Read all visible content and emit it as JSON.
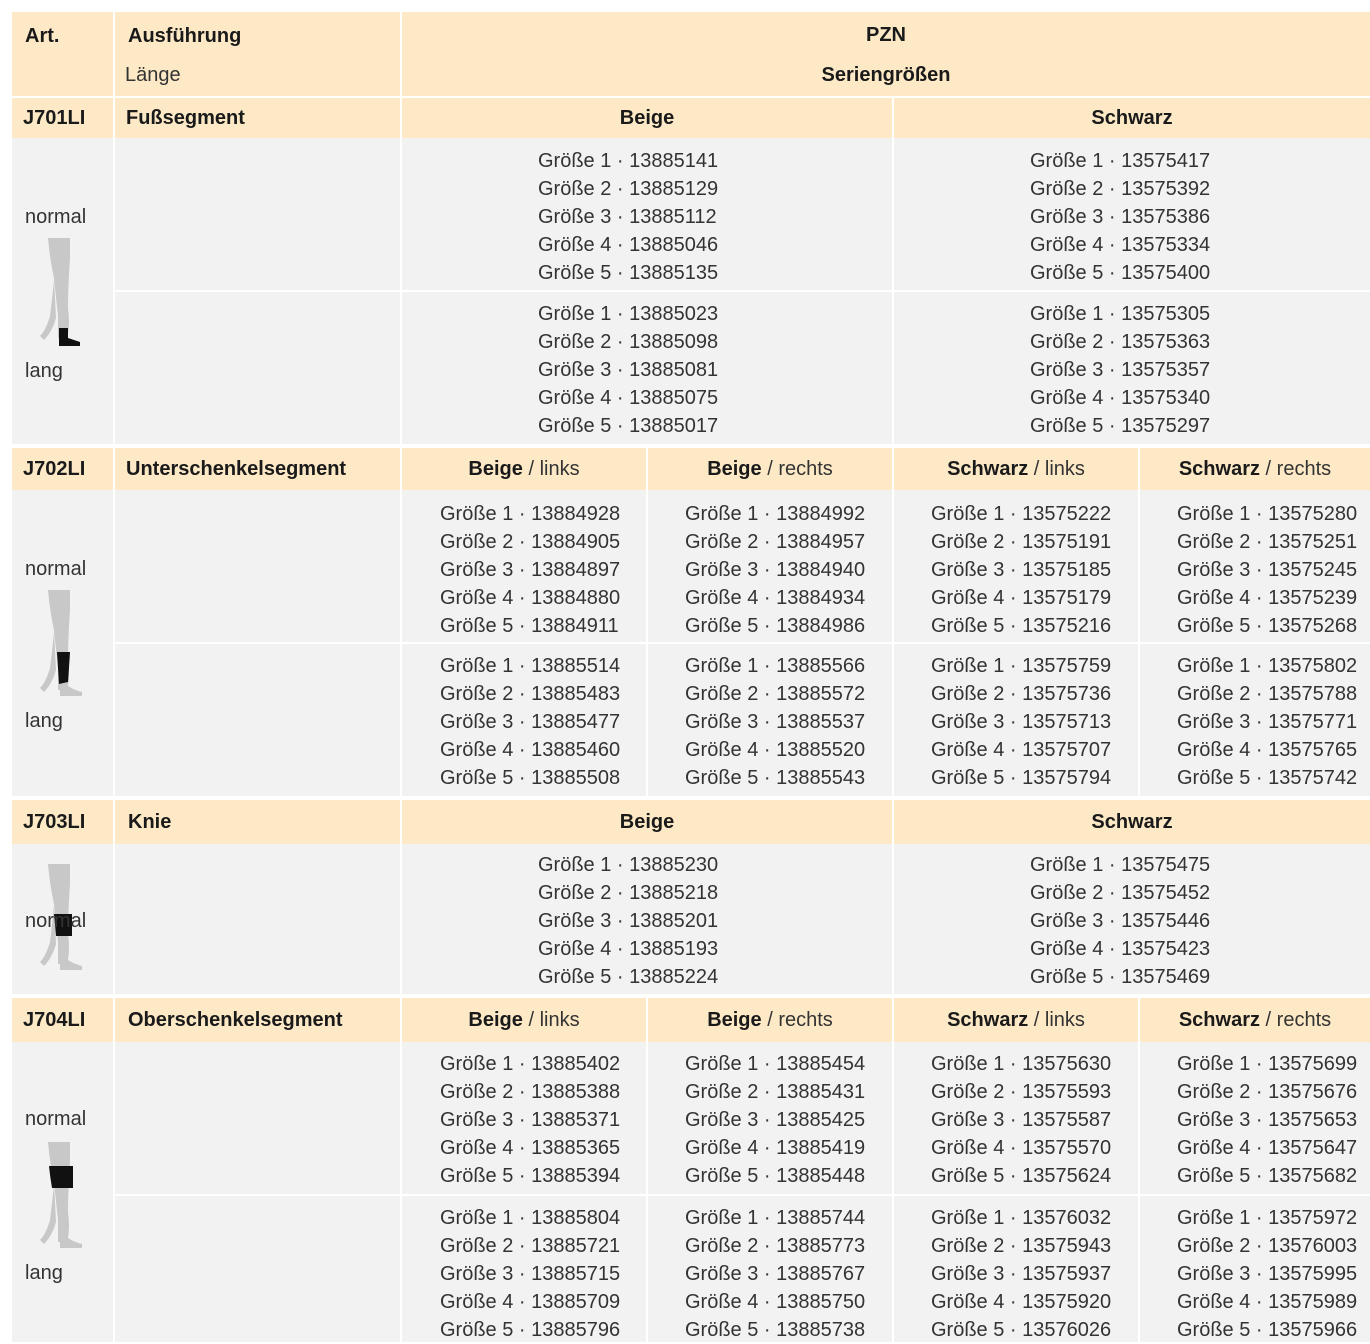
{
  "header": {
    "art": "Art.",
    "ausfuehrung": "Ausführung",
    "laenge": "Länge",
    "pzn": "PZN",
    "seriengroessen": "Seriengrößen"
  },
  "labels": {
    "beige": "Beige",
    "schwarz": "Schwarz",
    "links": "links",
    "rechts": "rechts",
    "normal": "normal",
    "lang": "lang"
  },
  "j701": {
    "art": "J701LI",
    "name": "Fußsegment",
    "normal": {
      "beige": [
        "Größe 1  · 13885141",
        "Größe 2 · 13885129",
        "Größe 3 · 13885112",
        "Größe 4 · 13885046",
        "Größe 5 · 13885135"
      ],
      "schwarz": [
        "Größe 1  · 13575417",
        "Größe 2 · 13575392",
        "Größe 3 · 13575386",
        "Größe 4 · 13575334",
        "Größe 5 · 13575400"
      ]
    },
    "lang": {
      "beige": [
        "Größe 1  · 13885023",
        "Größe 2 · 13885098",
        "Größe 3 · 13885081",
        "Größe 4 · 13885075",
        "Größe 5 · 13885017"
      ],
      "schwarz": [
        "Größe 1  · 13575305",
        "Größe 2 · 13575363",
        "Größe 3 · 13575357",
        "Größe 4 · 13575340",
        "Größe 5 · 13575297"
      ]
    }
  },
  "j702": {
    "art": "J702LI",
    "name": "Unterschenkelsegment",
    "normal": {
      "beige_links": [
        "Größe 1  · 13884928",
        "Größe 2 · 13884905",
        "Größe 3 · 13884897",
        "Größe 4 · 13884880",
        "Größe 5 · 13884911"
      ],
      "beige_rechts": [
        "Größe 1  · 13884992",
        "Größe 2 · 13884957",
        "Größe 3 · 13884940",
        "Größe 4 · 13884934",
        "Größe 5 · 13884986"
      ],
      "schwarz_links": [
        "Größe 1  · 13575222",
        "Größe 2 · 13575191",
        "Größe 3 · 13575185",
        "Größe 4 · 13575179",
        "Größe 5 · 13575216"
      ],
      "schwarz_rechts": [
        "Größe 1  · 13575280",
        "Größe 2 · 13575251",
        "Größe 3 · 13575245",
        "Größe 4 · 13575239",
        "Größe 5 · 13575268"
      ]
    },
    "lang": {
      "beige_links": [
        "Größe 1  · 13885514",
        "Größe 2 · 13885483",
        "Größe 3 · 13885477",
        "Größe 4 · 13885460",
        "Größe 5 · 13885508"
      ],
      "beige_rechts": [
        "Größe 1  · 13885566",
        "Größe 2 · 13885572",
        "Größe 3 · 13885537",
        "Größe 4 · 13885520",
        "Größe 5 · 13885543"
      ],
      "schwarz_links": [
        "Größe 1  · 13575759",
        "Größe 2 · 13575736",
        "Größe 3 · 13575713",
        "Größe 4 · 13575707",
        "Größe 5 · 13575794"
      ],
      "schwarz_rechts": [
        "Größe 1  · 13575802",
        "Größe 2 · 13575788",
        "Größe 3 · 13575771",
        "Größe 4 · 13575765",
        "Größe 5 · 13575742"
      ]
    }
  },
  "j703": {
    "art": "J703LI",
    "name": "Knie",
    "normal": {
      "beige": [
        "Größe 1   · 13885230",
        "Größe 2  · 13885218",
        "Größe 3  · 13885201",
        "Größe 4  · 13885193",
        "Größe 5  · 13885224"
      ],
      "schwarz": [
        "Größe 1   · 13575475",
        "Größe 2  · 13575452",
        "Größe 3  · 13575446",
        "Größe 4  · 13575423",
        "Größe 5  · 13575469"
      ]
    }
  },
  "j704": {
    "art": "J704LI",
    "name": "Oberschenkelsegment",
    "normal": {
      "beige_links": [
        "Größe 1  · 13885402",
        "Größe 2 · 13885388",
        "Größe 3 · 13885371",
        "Größe 4 · 13885365",
        "Größe 5 · 13885394"
      ],
      "beige_rechts": [
        "Größe 1  · 13885454",
        "Größe 2 · 13885431",
        "Größe 3 · 13885425",
        "Größe 4 · 13885419",
        "Größe 5 · 13885448"
      ],
      "schwarz_links": [
        "Größe 1  · 13575630",
        "Größe 2 · 13575593",
        "Größe 3 · 13575587",
        "Größe 4 · 13575570",
        "Größe 5 · 13575624"
      ],
      "schwarz_rechts": [
        "Größe 1  · 13575699",
        "Größe 2 · 13575676",
        "Größe 3 · 13575653",
        "Größe 4 · 13575647",
        "Größe 5 · 13575682"
      ]
    },
    "lang": {
      "beige_links": [
        "Größe 1  · 13885804",
        "Größe 2 · 13885721",
        "Größe 3 · 13885715",
        "Größe 4 · 13885709",
        "Größe 5 · 13885796"
      ],
      "beige_rechts": [
        "Größe 1  · 13885744",
        "Größe 2 · 13885773",
        "Größe 3 · 13885767",
        "Größe 4 · 13885750",
        "Größe 5 · 13885738"
      ],
      "schwarz_links": [
        "Größe 1  · 13576032",
        "Größe 2 · 13575943",
        "Größe 3 · 13575937",
        "Größe 4 · 13575920",
        "Größe 5 · 13576026"
      ],
      "schwarz_rechts": [
        "Größe 1  · 13575972",
        "Größe 2 · 13576003",
        "Größe 3 · 13575995",
        "Größe 4 · 13575989",
        "Größe 5 · 13575966"
      ]
    }
  },
  "colors": {
    "header_bg": "#fde9c6",
    "body_bg": "#f2f2f2",
    "figure_gray": "#c8c8c8",
    "figure_black": "#111111"
  },
  "icons": [
    "leg-foot-segment-icon",
    "leg-lower-segment-icon",
    "leg-knee-segment-icon",
    "leg-upper-segment-icon"
  ]
}
